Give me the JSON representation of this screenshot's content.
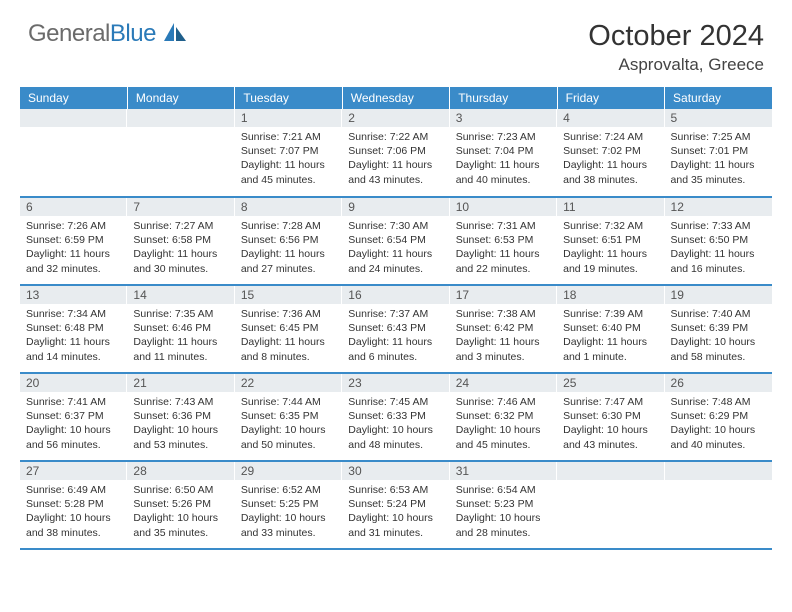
{
  "logo": {
    "general": "General",
    "blue": "Blue"
  },
  "title": "October 2024",
  "location": "Asprovalta, Greece",
  "colors": {
    "headerBar": "#3a8bc9",
    "dayNumBg": "#e8ecef",
    "rowBorder": "#3a8bc9",
    "logoBlue": "#2a7ab8"
  },
  "weekdays": [
    "Sunday",
    "Monday",
    "Tuesday",
    "Wednesday",
    "Thursday",
    "Friday",
    "Saturday"
  ],
  "weeks": [
    [
      {
        "n": "",
        "sr": "",
        "ss": "",
        "dl": ""
      },
      {
        "n": "",
        "sr": "",
        "ss": "",
        "dl": ""
      },
      {
        "n": "1",
        "sr": "Sunrise: 7:21 AM",
        "ss": "Sunset: 7:07 PM",
        "dl": "Daylight: 11 hours and 45 minutes."
      },
      {
        "n": "2",
        "sr": "Sunrise: 7:22 AM",
        "ss": "Sunset: 7:06 PM",
        "dl": "Daylight: 11 hours and 43 minutes."
      },
      {
        "n": "3",
        "sr": "Sunrise: 7:23 AM",
        "ss": "Sunset: 7:04 PM",
        "dl": "Daylight: 11 hours and 40 minutes."
      },
      {
        "n": "4",
        "sr": "Sunrise: 7:24 AM",
        "ss": "Sunset: 7:02 PM",
        "dl": "Daylight: 11 hours and 38 minutes."
      },
      {
        "n": "5",
        "sr": "Sunrise: 7:25 AM",
        "ss": "Sunset: 7:01 PM",
        "dl": "Daylight: 11 hours and 35 minutes."
      }
    ],
    [
      {
        "n": "6",
        "sr": "Sunrise: 7:26 AM",
        "ss": "Sunset: 6:59 PM",
        "dl": "Daylight: 11 hours and 32 minutes."
      },
      {
        "n": "7",
        "sr": "Sunrise: 7:27 AM",
        "ss": "Sunset: 6:58 PM",
        "dl": "Daylight: 11 hours and 30 minutes."
      },
      {
        "n": "8",
        "sr": "Sunrise: 7:28 AM",
        "ss": "Sunset: 6:56 PM",
        "dl": "Daylight: 11 hours and 27 minutes."
      },
      {
        "n": "9",
        "sr": "Sunrise: 7:30 AM",
        "ss": "Sunset: 6:54 PM",
        "dl": "Daylight: 11 hours and 24 minutes."
      },
      {
        "n": "10",
        "sr": "Sunrise: 7:31 AM",
        "ss": "Sunset: 6:53 PM",
        "dl": "Daylight: 11 hours and 22 minutes."
      },
      {
        "n": "11",
        "sr": "Sunrise: 7:32 AM",
        "ss": "Sunset: 6:51 PM",
        "dl": "Daylight: 11 hours and 19 minutes."
      },
      {
        "n": "12",
        "sr": "Sunrise: 7:33 AM",
        "ss": "Sunset: 6:50 PM",
        "dl": "Daylight: 11 hours and 16 minutes."
      }
    ],
    [
      {
        "n": "13",
        "sr": "Sunrise: 7:34 AM",
        "ss": "Sunset: 6:48 PM",
        "dl": "Daylight: 11 hours and 14 minutes."
      },
      {
        "n": "14",
        "sr": "Sunrise: 7:35 AM",
        "ss": "Sunset: 6:46 PM",
        "dl": "Daylight: 11 hours and 11 minutes."
      },
      {
        "n": "15",
        "sr": "Sunrise: 7:36 AM",
        "ss": "Sunset: 6:45 PM",
        "dl": "Daylight: 11 hours and 8 minutes."
      },
      {
        "n": "16",
        "sr": "Sunrise: 7:37 AM",
        "ss": "Sunset: 6:43 PM",
        "dl": "Daylight: 11 hours and 6 minutes."
      },
      {
        "n": "17",
        "sr": "Sunrise: 7:38 AM",
        "ss": "Sunset: 6:42 PM",
        "dl": "Daylight: 11 hours and 3 minutes."
      },
      {
        "n": "18",
        "sr": "Sunrise: 7:39 AM",
        "ss": "Sunset: 6:40 PM",
        "dl": "Daylight: 11 hours and 1 minute."
      },
      {
        "n": "19",
        "sr": "Sunrise: 7:40 AM",
        "ss": "Sunset: 6:39 PM",
        "dl": "Daylight: 10 hours and 58 minutes."
      }
    ],
    [
      {
        "n": "20",
        "sr": "Sunrise: 7:41 AM",
        "ss": "Sunset: 6:37 PM",
        "dl": "Daylight: 10 hours and 56 minutes."
      },
      {
        "n": "21",
        "sr": "Sunrise: 7:43 AM",
        "ss": "Sunset: 6:36 PM",
        "dl": "Daylight: 10 hours and 53 minutes."
      },
      {
        "n": "22",
        "sr": "Sunrise: 7:44 AM",
        "ss": "Sunset: 6:35 PM",
        "dl": "Daylight: 10 hours and 50 minutes."
      },
      {
        "n": "23",
        "sr": "Sunrise: 7:45 AM",
        "ss": "Sunset: 6:33 PM",
        "dl": "Daylight: 10 hours and 48 minutes."
      },
      {
        "n": "24",
        "sr": "Sunrise: 7:46 AM",
        "ss": "Sunset: 6:32 PM",
        "dl": "Daylight: 10 hours and 45 minutes."
      },
      {
        "n": "25",
        "sr": "Sunrise: 7:47 AM",
        "ss": "Sunset: 6:30 PM",
        "dl": "Daylight: 10 hours and 43 minutes."
      },
      {
        "n": "26",
        "sr": "Sunrise: 7:48 AM",
        "ss": "Sunset: 6:29 PM",
        "dl": "Daylight: 10 hours and 40 minutes."
      }
    ],
    [
      {
        "n": "27",
        "sr": "Sunrise: 6:49 AM",
        "ss": "Sunset: 5:28 PM",
        "dl": "Daylight: 10 hours and 38 minutes."
      },
      {
        "n": "28",
        "sr": "Sunrise: 6:50 AM",
        "ss": "Sunset: 5:26 PM",
        "dl": "Daylight: 10 hours and 35 minutes."
      },
      {
        "n": "29",
        "sr": "Sunrise: 6:52 AM",
        "ss": "Sunset: 5:25 PM",
        "dl": "Daylight: 10 hours and 33 minutes."
      },
      {
        "n": "30",
        "sr": "Sunrise: 6:53 AM",
        "ss": "Sunset: 5:24 PM",
        "dl": "Daylight: 10 hours and 31 minutes."
      },
      {
        "n": "31",
        "sr": "Sunrise: 6:54 AM",
        "ss": "Sunset: 5:23 PM",
        "dl": "Daylight: 10 hours and 28 minutes."
      },
      {
        "n": "",
        "sr": "",
        "ss": "",
        "dl": ""
      },
      {
        "n": "",
        "sr": "",
        "ss": "",
        "dl": ""
      }
    ]
  ]
}
